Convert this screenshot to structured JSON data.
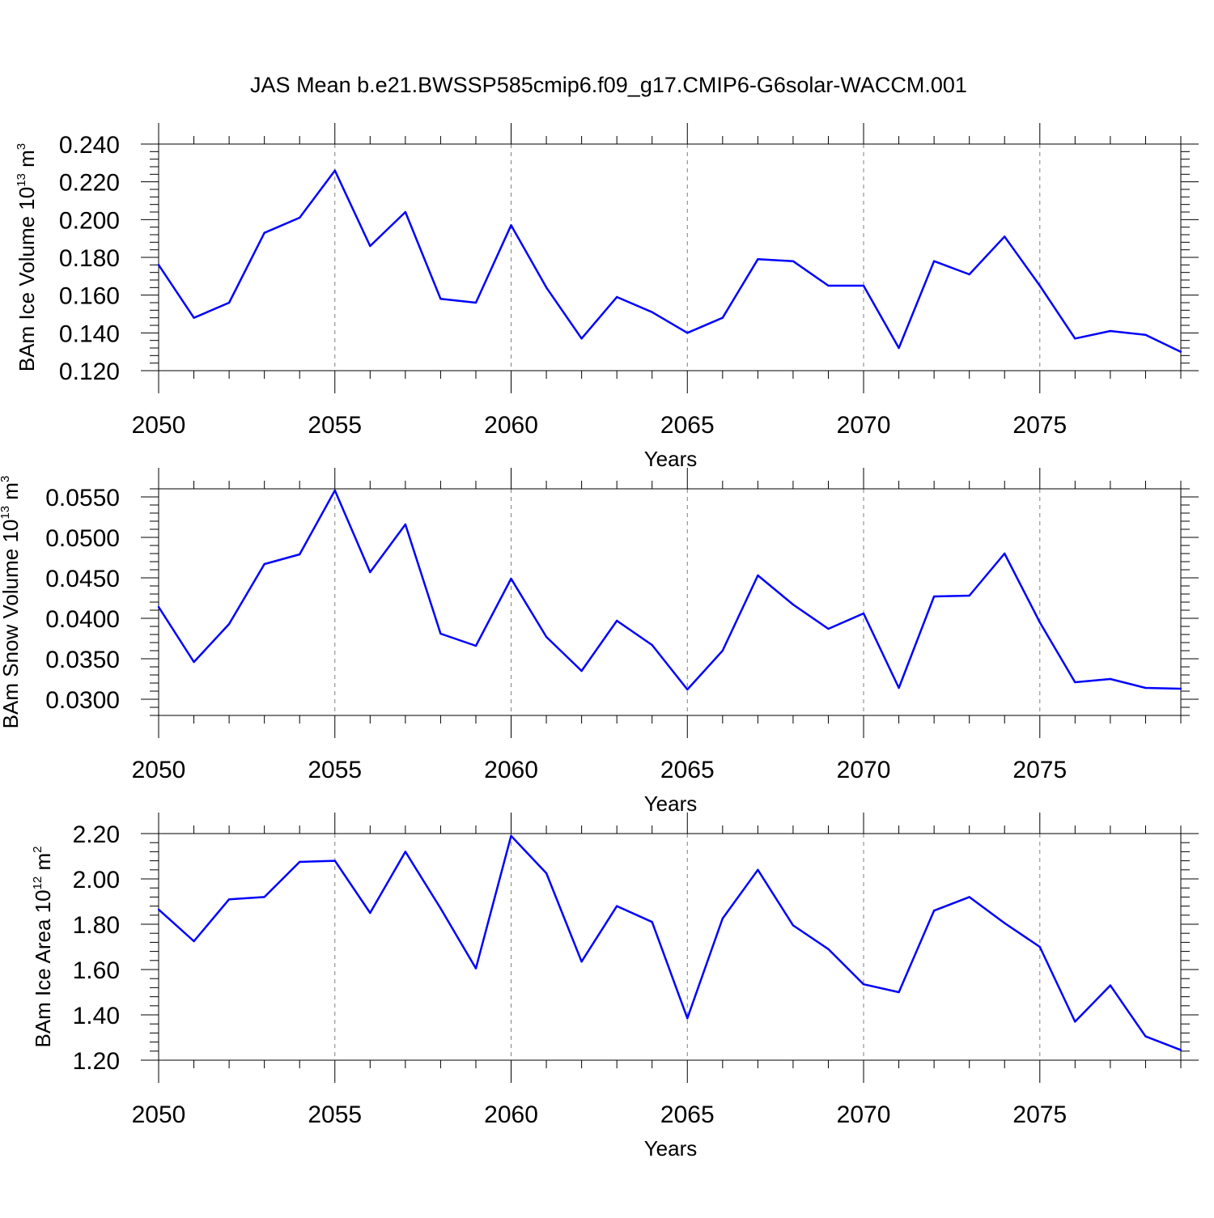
{
  "title": "JAS Mean b.e21.BWSSP585cmip6.f09_g17.CMIP6-G6solar-WACCM.001",
  "colors": {
    "line": "#0000ff",
    "axis": "#000000",
    "grid": "#808080"
  },
  "chart_data": [
    {
      "type": "line",
      "ylabel": {
        "base": "BAm Ice Volume 10",
        "exponent": "13",
        "unit": " m",
        "unit_exponent": "3"
      },
      "xlabel": "Years",
      "xlim": [
        2050,
        2079
      ],
      "ylim": [
        0.12,
        0.24
      ],
      "yticks": [
        "0.120",
        "0.140",
        "0.160",
        "0.180",
        "0.200",
        "0.220",
        "0.240"
      ],
      "ytick_values": [
        0.12,
        0.14,
        0.16,
        0.18,
        0.2,
        0.22,
        0.24
      ],
      "xticks": [
        "2050",
        "2055",
        "2060",
        "2065",
        "2070",
        "2075"
      ],
      "xtick_values": [
        2050,
        2055,
        2060,
        2065,
        2070,
        2075
      ],
      "grid": "dashed vertical lines at major x ticks",
      "x": [
        2050,
        2051,
        2052,
        2053,
        2054,
        2055,
        2056,
        2057,
        2058,
        2059,
        2060,
        2061,
        2062,
        2063,
        2064,
        2065,
        2066,
        2067,
        2068,
        2069,
        2070,
        2071,
        2072,
        2073,
        2074,
        2075,
        2076,
        2077,
        2078,
        2079
      ],
      "values": [
        0.176,
        0.148,
        0.156,
        0.193,
        0.201,
        0.226,
        0.186,
        0.204,
        0.158,
        0.156,
        0.197,
        0.164,
        0.137,
        0.159,
        0.151,
        0.14,
        0.148,
        0.179,
        0.178,
        0.165,
        0.165,
        0.132,
        0.178,
        0.171,
        0.191,
        0.165,
        0.137,
        0.141,
        0.139,
        0.13
      ]
    },
    {
      "type": "line",
      "ylabel": {
        "base": "BAm Snow Volume 10",
        "exponent": "13",
        "unit": " m",
        "unit_exponent": "3"
      },
      "xlabel": "Years",
      "xlim": [
        2050,
        2079
      ],
      "ylim": [
        0.028,
        0.056
      ],
      "yticks": [
        "0.0300",
        "0.0350",
        "0.0400",
        "0.0450",
        "0.0500",
        "0.0550"
      ],
      "ytick_values": [
        0.03,
        0.035,
        0.04,
        0.045,
        0.05,
        0.055
      ],
      "xticks": [
        "2050",
        "2055",
        "2060",
        "2065",
        "2070",
        "2075"
      ],
      "xtick_values": [
        2050,
        2055,
        2060,
        2065,
        2070,
        2075
      ],
      "grid": "dashed vertical lines at major x ticks",
      "x": [
        2050,
        2051,
        2052,
        2053,
        2054,
        2055,
        2056,
        2057,
        2058,
        2059,
        2060,
        2061,
        2062,
        2063,
        2064,
        2065,
        2066,
        2067,
        2068,
        2069,
        2070,
        2071,
        2072,
        2073,
        2074,
        2075,
        2076,
        2077,
        2078,
        2079
      ],
      "values": [
        0.0414,
        0.0346,
        0.0393,
        0.0467,
        0.0479,
        0.0558,
        0.0457,
        0.0516,
        0.0381,
        0.0366,
        0.0449,
        0.0377,
        0.0335,
        0.0397,
        0.0367,
        0.0312,
        0.036,
        0.0453,
        0.0417,
        0.0387,
        0.0406,
        0.0314,
        0.0427,
        0.0428,
        0.048,
        0.0395,
        0.0321,
        0.0325,
        0.0314,
        0.0313
      ]
    },
    {
      "type": "line",
      "ylabel": {
        "base": "BAm Ice Area 10",
        "exponent": "12",
        "unit": " m",
        "unit_exponent": "2"
      },
      "xlabel": "Years",
      "xlim": [
        2050,
        2079
      ],
      "ylim": [
        1.2,
        2.2
      ],
      "yticks": [
        "1.20",
        "1.40",
        "1.60",
        "1.80",
        "2.00",
        "2.20"
      ],
      "ytick_values": [
        1.2,
        1.4,
        1.6,
        1.8,
        2.0,
        2.2
      ],
      "xticks": [
        "2050",
        "2055",
        "2060",
        "2065",
        "2070",
        "2075"
      ],
      "xtick_values": [
        2050,
        2055,
        2060,
        2065,
        2070,
        2075
      ],
      "grid": "dashed vertical lines at major x ticks",
      "x": [
        2050,
        2051,
        2052,
        2053,
        2054,
        2055,
        2056,
        2057,
        2058,
        2059,
        2060,
        2061,
        2062,
        2063,
        2064,
        2065,
        2066,
        2067,
        2068,
        2069,
        2070,
        2071,
        2072,
        2073,
        2074,
        2075,
        2076,
        2077,
        2078,
        2079
      ],
      "values": [
        1.865,
        1.725,
        1.91,
        1.92,
        2.075,
        2.08,
        1.85,
        2.12,
        1.87,
        1.605,
        2.19,
        2.025,
        1.635,
        1.88,
        1.81,
        1.385,
        1.825,
        2.04,
        1.795,
        1.69,
        1.535,
        1.5,
        1.86,
        1.92,
        1.805,
        1.7,
        1.37,
        1.53,
        1.305,
        1.245
      ]
    }
  ]
}
